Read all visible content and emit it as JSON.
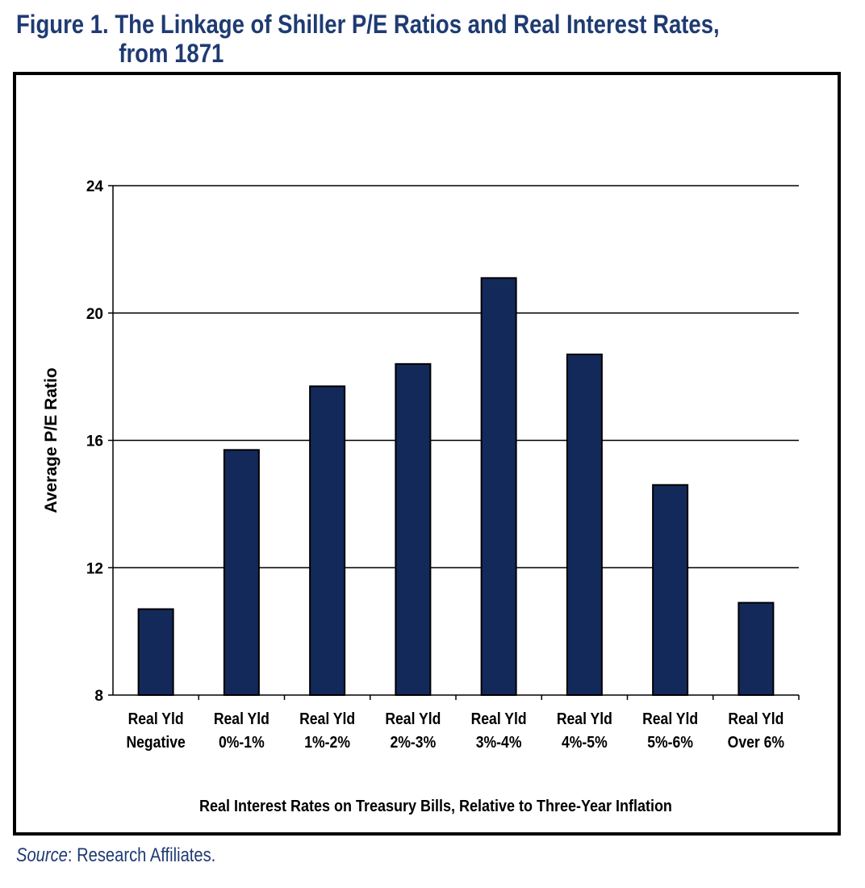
{
  "figure": {
    "title_line1": "Figure 1. The Linkage of Shiller P/E Ratios and Real Interest Rates,",
    "title_line2": "from 1871",
    "source_label": "Source",
    "source_text": ": Research Affiliates."
  },
  "colors": {
    "title": "#1f3b73",
    "bar_fill": "#13295a",
    "bar_stroke": "#000000",
    "gridline": "#000000"
  },
  "chart_data": {
    "type": "bar",
    "categories": [
      [
        "Real Yld",
        "Negative"
      ],
      [
        "Real Yld",
        "0%-1%"
      ],
      [
        "Real Yld",
        "1%-2%"
      ],
      [
        "Real Yld",
        "2%-3%"
      ],
      [
        "Real Yld",
        "3%-4%"
      ],
      [
        "Real Yld",
        "4%-5%"
      ],
      [
        "Real Yld",
        "5%-6%"
      ],
      [
        "Real Yld",
        "Over 6%"
      ]
    ],
    "values": [
      10.7,
      15.7,
      17.7,
      18.4,
      21.1,
      18.7,
      14.6,
      10.9
    ],
    "ylabel": "Average P/E Ratio",
    "xlabel": "Real Interest Rates on Treasury Bills, Relative to Three-Year Inflation",
    "ylim": [
      8,
      24
    ],
    "yticks": [
      8,
      12,
      16,
      20,
      24
    ],
    "grid": true,
    "legend": "none"
  }
}
